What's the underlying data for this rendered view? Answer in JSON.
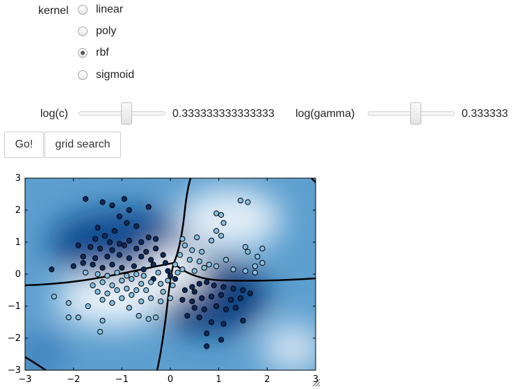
{
  "kernel": {
    "label": "kernel",
    "options": [
      {
        "label": "linear",
        "selected": false
      },
      {
        "label": "poly",
        "selected": false
      },
      {
        "label": "rbf",
        "selected": true
      },
      {
        "label": "sigmoid",
        "selected": false
      }
    ]
  },
  "sliders": {
    "logc": {
      "label": "log(c)",
      "value_text": "0.333333333333333",
      "fraction": 0.55
    },
    "loggamma": {
      "label": "log(gamma)",
      "value_text": "0.333333",
      "fraction": 0.55
    }
  },
  "buttons": {
    "go_label": "Go!",
    "grid_label": "grid search"
  },
  "chart_data": {
    "type": "scatter",
    "title": "",
    "xlabel": "",
    "ylabel": "",
    "xlim": [
      -3,
      3
    ],
    "ylim": [
      -3,
      3
    ],
    "xticks": [
      "−3",
      "−2",
      "−1",
      "0",
      "1",
      "2",
      "3"
    ],
    "yticks": [
      "3",
      "2",
      "1",
      "0",
      "−1",
      "−2",
      "−3"
    ],
    "grid": false,
    "background": "rbf decision function heatmap (blues)",
    "colors": {
      "dark_class": "#0d2a5c",
      "light_class": "#84c0e0",
      "boundary": "#000000"
    },
    "series": [
      {
        "class": "dark",
        "points": [
          [
            -1.75,
            2.35
          ],
          [
            -1.4,
            2.25
          ],
          [
            -1.2,
            2.15
          ],
          [
            -0.45,
            2.1
          ],
          [
            -0.95,
            2.35
          ],
          [
            -0.85,
            2.0
          ],
          [
            -1.05,
            1.8
          ],
          [
            -0.9,
            1.6
          ],
          [
            -0.7,
            1.5
          ],
          [
            -1.5,
            1.45
          ],
          [
            -1.15,
            1.35
          ],
          [
            -1.35,
            1.2
          ],
          [
            -1.55,
            1.1
          ],
          [
            -1.25,
            1.0
          ],
          [
            -1.05,
            0.95
          ],
          [
            -0.85,
            1.05
          ],
          [
            -0.6,
            1.0
          ],
          [
            -0.45,
            1.15
          ],
          [
            -0.3,
            1.1
          ],
          [
            -1.9,
            0.9
          ],
          [
            -1.65,
            0.85
          ],
          [
            -1.45,
            0.8
          ],
          [
            -1.2,
            0.75
          ],
          [
            -0.95,
            0.9
          ],
          [
            -0.7,
            0.8
          ],
          [
            -0.5,
            0.7
          ],
          [
            -0.3,
            0.8
          ],
          [
            -1.8,
            0.55
          ],
          [
            -1.55,
            0.5
          ],
          [
            -1.3,
            0.55
          ],
          [
            -1.05,
            0.6
          ],
          [
            -0.85,
            0.5
          ],
          [
            -0.6,
            0.55
          ],
          [
            -0.4,
            0.45
          ],
          [
            -0.15,
            0.6
          ],
          [
            -2.45,
            0.15
          ],
          [
            -2.0,
            0.25
          ],
          [
            -1.8,
            0.35
          ],
          [
            -1.6,
            0.3
          ],
          [
            -1.4,
            0.2
          ],
          [
            -1.2,
            0.3
          ],
          [
            -1.0,
            0.2
          ],
          [
            -0.75,
            0.25
          ],
          [
            -0.55,
            0.15
          ],
          [
            -0.35,
            0.3
          ],
          [
            -0.1,
            0.35
          ],
          [
            0.3,
            -0.5
          ],
          [
            0.45,
            -0.4
          ],
          [
            0.6,
            -0.3
          ],
          [
            0.75,
            -0.25
          ],
          [
            0.9,
            -0.35
          ],
          [
            1.1,
            -0.4
          ],
          [
            1.3,
            -0.45
          ],
          [
            1.5,
            -0.5
          ],
          [
            1.65,
            -0.6
          ],
          [
            0.25,
            -0.8
          ],
          [
            0.45,
            -0.85
          ],
          [
            0.65,
            -0.75
          ],
          [
            0.85,
            -0.7
          ],
          [
            1.05,
            -0.65
          ],
          [
            1.25,
            -0.8
          ],
          [
            1.45,
            -0.75
          ],
          [
            0.5,
            -1.05
          ],
          [
            0.7,
            -1.1
          ],
          [
            0.95,
            -1.0
          ],
          [
            1.15,
            -1.1
          ],
          [
            1.35,
            -1.05
          ],
          [
            0.35,
            -1.3
          ],
          [
            0.6,
            -1.35
          ],
          [
            0.85,
            -1.5
          ],
          [
            1.1,
            -1.55
          ],
          [
            1.5,
            -1.45
          ],
          [
            0.75,
            -1.85
          ],
          [
            1.05,
            -2.05
          ],
          [
            0.75,
            -2.25
          ],
          [
            0.0,
            -0.05
          ],
          [
            -0.05,
            0.1
          ],
          [
            0.1,
            -0.15
          ],
          [
            -0.35,
            -0.15
          ],
          [
            0.5,
            -0.55
          ]
        ]
      },
      {
        "class": "light",
        "points": [
          [
            1.45,
            2.3
          ],
          [
            1.6,
            2.25
          ],
          [
            0.95,
            1.9
          ],
          [
            1.05,
            1.85
          ],
          [
            1.1,
            1.6
          ],
          [
            0.95,
            1.35
          ],
          [
            1.05,
            1.2
          ],
          [
            0.85,
            1.05
          ],
          [
            0.55,
            1.15
          ],
          [
            0.25,
            1.1
          ],
          [
            0.3,
            0.9
          ],
          [
            0.45,
            0.75
          ],
          [
            0.65,
            0.7
          ],
          [
            0.2,
            0.6
          ],
          [
            0.4,
            0.45
          ],
          [
            0.6,
            0.4
          ],
          [
            0.8,
            0.3
          ],
          [
            0.95,
            0.25
          ],
          [
            1.15,
            0.45
          ],
          [
            0.1,
            0.3
          ],
          [
            0.25,
            0.15
          ],
          [
            0.5,
            0.1
          ],
          [
            0.7,
            0.2
          ],
          [
            1.3,
            0.15
          ],
          [
            1.55,
            0.1
          ],
          [
            1.75,
            0.05
          ],
          [
            1.9,
            0.35
          ],
          [
            1.8,
            0.55
          ],
          [
            1.9,
            0.8
          ],
          [
            1.6,
            0.7
          ],
          [
            1.55,
            0.85
          ],
          [
            1.75,
            0.25
          ],
          [
            -2.4,
            -0.7
          ],
          [
            -2.1,
            -0.9
          ],
          [
            -1.7,
            -1.0
          ],
          [
            -1.4,
            -0.8
          ],
          [
            -1.2,
            -0.9
          ],
          [
            -1.0,
            -0.75
          ],
          [
            -0.8,
            -0.65
          ],
          [
            -0.6,
            -0.85
          ],
          [
            -0.4,
            -0.75
          ],
          [
            -0.2,
            -0.85
          ],
          [
            0.0,
            -0.75
          ],
          [
            -1.6,
            -0.35
          ],
          [
            -1.4,
            -0.25
          ],
          [
            -1.2,
            -0.35
          ],
          [
            -1.0,
            -0.2
          ],
          [
            -0.8,
            -0.15
          ],
          [
            -0.6,
            -0.3
          ],
          [
            -0.4,
            -0.25
          ],
          [
            -0.2,
            -0.3
          ],
          [
            -1.5,
            -0.55
          ],
          [
            -1.3,
            -0.6
          ],
          [
            -1.1,
            -0.5
          ],
          [
            -0.9,
            -0.45
          ],
          [
            -0.7,
            -0.5
          ],
          [
            -0.5,
            -0.5
          ],
          [
            -2.1,
            -1.35
          ],
          [
            -1.9,
            -1.35
          ],
          [
            -1.4,
            -1.45
          ],
          [
            -1.45,
            -1.8
          ],
          [
            -0.65,
            -1.3
          ],
          [
            -0.45,
            -1.4
          ],
          [
            -0.3,
            -1.35
          ],
          [
            -0.85,
            -1.05
          ],
          [
            -0.15,
            -0.55
          ],
          [
            0.05,
            -0.35
          ],
          [
            -0.05,
            -0.2
          ],
          [
            0.15,
            0.05
          ],
          [
            -0.25,
            0.05
          ],
          [
            -1.75,
            0.05
          ],
          [
            -1.5,
            0.0
          ],
          [
            -1.3,
            -0.05
          ],
          [
            -1.1,
            0.05
          ],
          [
            -0.9,
            -0.05
          ],
          [
            -0.7,
            0.0
          ],
          [
            -0.55,
            -0.05
          ]
        ]
      }
    ]
  }
}
